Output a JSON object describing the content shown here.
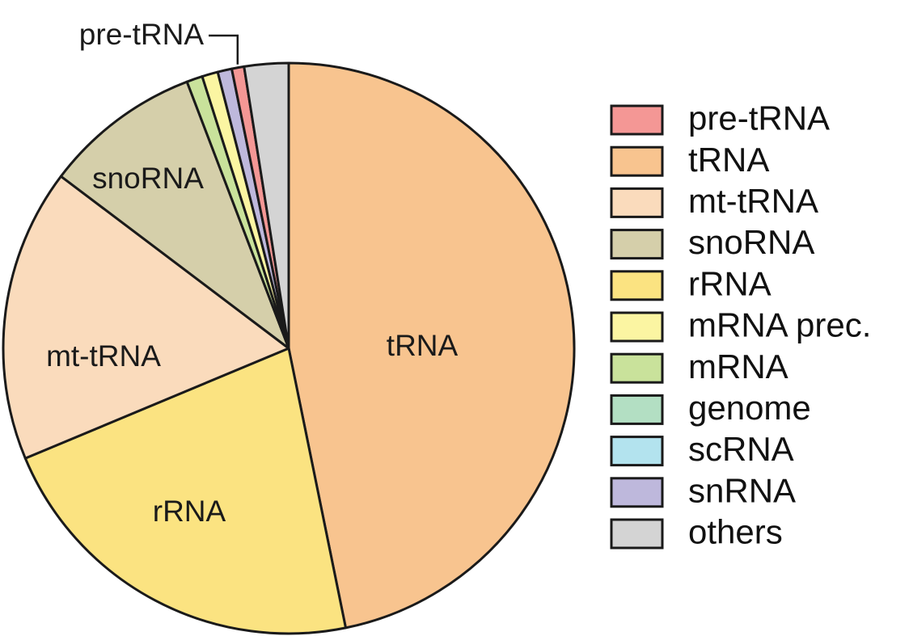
{
  "chart_data": {
    "type": "pie",
    "title": "",
    "start_angle_deg": 0,
    "direction": "clockwise",
    "slices": [
      {
        "name": "tRNA",
        "value": 46.8,
        "color": "#F8C48F",
        "label": "tRNA"
      },
      {
        "name": "rRNA",
        "value": 21.9,
        "color": "#FBE381",
        "label": "rRNA"
      },
      {
        "name": "mt-tRNA",
        "value": 16.6,
        "color": "#FADBBC",
        "label": "mt-tRNA"
      },
      {
        "name": "snoRNA",
        "value": 8.9,
        "color": "#D5CFAA",
        "label": "snoRNA"
      },
      {
        "name": "mRNA",
        "value": 0.9,
        "color": "#C9E29B",
        "label": ""
      },
      {
        "name": "mRNA prec.",
        "value": 0.9,
        "color": "#FBF5A2",
        "label": ""
      },
      {
        "name": "snRNA",
        "value": 0.8,
        "color": "#BEB8DC",
        "label": ""
      },
      {
        "name": "pre-tRNA",
        "value": 0.7,
        "color": "#F49795",
        "label": ""
      },
      {
        "name": "others",
        "value": 2.5,
        "color": "#D4D4D4",
        "label": ""
      }
    ],
    "outer_label": {
      "text": "pre-tRNA",
      "target": "pre-tRNA"
    },
    "legend": {
      "placement": "right",
      "entries": [
        {
          "label": "pre-tRNA",
          "color": "#F49795"
        },
        {
          "label": "tRNA",
          "color": "#F8C48F"
        },
        {
          "label": "mt-tRNA",
          "color": "#FADBBC"
        },
        {
          "label": "snoRNA",
          "color": "#D5CFAA"
        },
        {
          "label": "rRNA",
          "color": "#FBE381"
        },
        {
          "label": "mRNA prec.",
          "color": "#FBF5A2"
        },
        {
          "label": "mRNA",
          "color": "#C9E29B"
        },
        {
          "label": "genome",
          "color": "#B3DFC3"
        },
        {
          "label": "scRNA",
          "color": "#B3E3EE"
        },
        {
          "label": "snRNA",
          "color": "#BEB8DC"
        },
        {
          "label": "others",
          "color": "#D4D4D4"
        }
      ]
    }
  }
}
